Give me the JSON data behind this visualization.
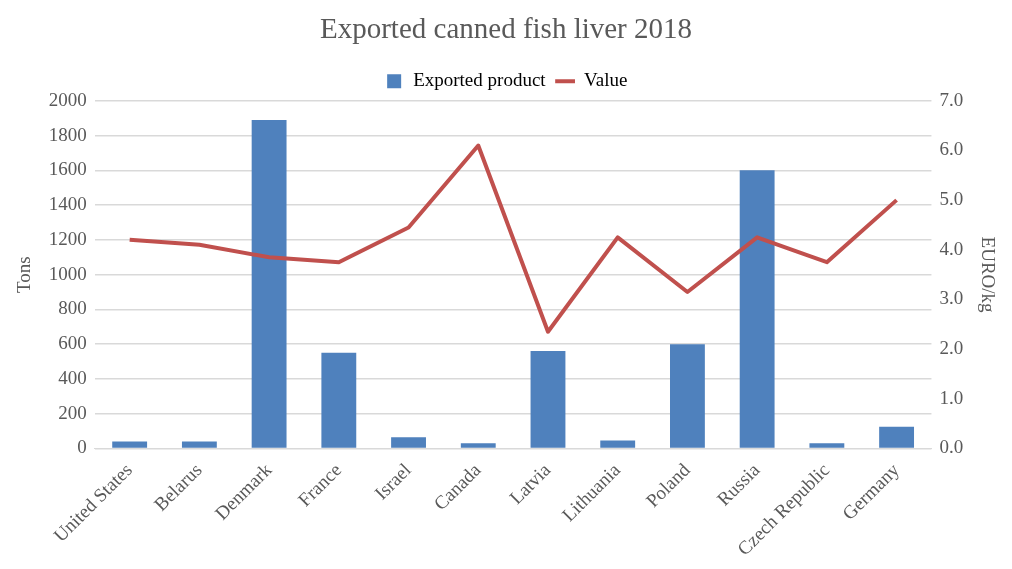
{
  "chart_data": {
    "type": "bar",
    "title": "Exported canned fish liver 2018",
    "ylabel": "Tons",
    "y2label": "EURO/kg",
    "categories": [
      "United States",
      "Belarus",
      "Denmark",
      "France",
      "Israel",
      "Canada",
      "Latvia",
      "Lithuania",
      "Poland",
      "Russia",
      "Czech Republic",
      "Germany"
    ],
    "series": [
      {
        "name": "Exported product",
        "color": "#4f81bd",
        "values": [
          40,
          40,
          1890,
          550,
          65,
          30,
          560,
          45,
          600,
          1600,
          30,
          125
        ]
      },
      {
        "name": "Value",
        "type": "line",
        "axis": "y2",
        "color": "#c0504d",
        "values": [
          4.2,
          4.1,
          3.85,
          3.75,
          4.45,
          6.1,
          2.35,
          4.25,
          3.15,
          4.25,
          3.75,
          5.0
        ]
      }
    ],
    "ylim": [
      0,
      2000
    ],
    "yticks": [
      0,
      200,
      400,
      600,
      800,
      1000,
      1200,
      1400,
      1600,
      1800,
      2000
    ],
    "y2lim": [
      0,
      7
    ],
    "y2ticks": [
      {
        "value": 0,
        "label": "0.0"
      },
      {
        "value": 1,
        "label": "1.0"
      },
      {
        "value": 2,
        "label": "2.0"
      },
      {
        "value": 3,
        "label": "3.0"
      },
      {
        "value": 4,
        "label": "4.0"
      },
      {
        "value": 5,
        "label": "5.0"
      },
      {
        "value": 6,
        "label": "6.0"
      },
      {
        "value": 7,
        "label": "7.0"
      }
    ],
    "grid": "y",
    "legend": "top",
    "marker": "none"
  }
}
